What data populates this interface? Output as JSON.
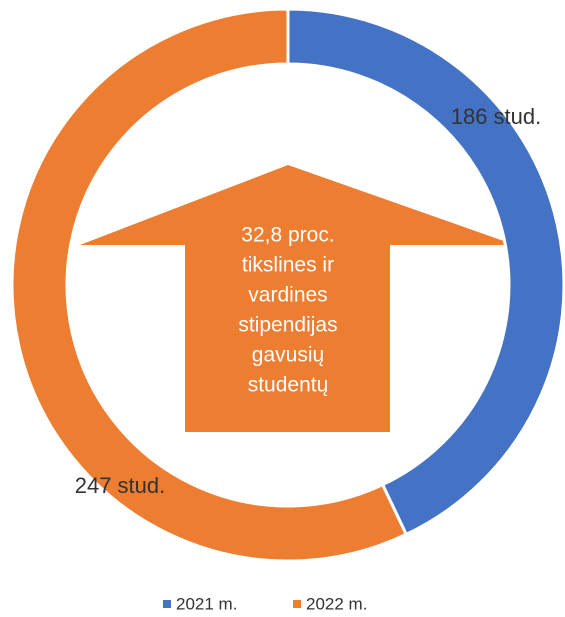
{
  "chart_data": {
    "type": "donut",
    "categories": [
      "2021 m.",
      "2022 m."
    ],
    "series": [
      {
        "name": "values",
        "values": [
          186,
          247
        ],
        "value_labels": [
          "186 stud.",
          "247 stud."
        ],
        "colors": [
          "#4472c4",
          "#ed7d31"
        ]
      }
    ],
    "annotation": [
      "32,8 proc.",
      "tikslines ir",
      "vardines",
      "stipendijas",
      "gavusių",
      "studentų"
    ],
    "legend": "bottom"
  }
}
